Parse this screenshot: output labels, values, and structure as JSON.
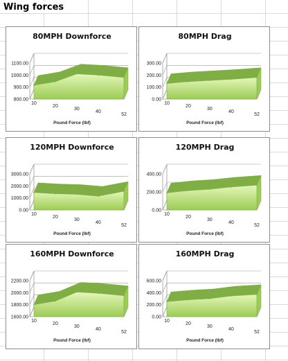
{
  "sheet": {
    "title": "Wing forces"
  },
  "colors": {
    "fill_light": "#e4f7b8",
    "fill_dark": "#9ccc55",
    "edge": "#7fae45",
    "grid": "#9a9a9a"
  },
  "chart_data": [
    {
      "type": "area",
      "title": "80MPH Downforce",
      "xlabel": "Pound Force (lbf)",
      "ylabel": "",
      "x_ticks": [
        "10",
        "20",
        "30",
        "40",
        "52"
      ],
      "y_ticks": [
        "800.00",
        "900.00",
        "1000.00",
        "1100.00"
      ],
      "ylim": [
        800,
        1100
      ],
      "x": [
        10,
        20,
        30,
        40,
        52
      ],
      "series": [
        {
          "values": [
            915,
            945,
            1010,
            1000,
            980
          ]
        }
      ]
    },
    {
      "type": "area",
      "title": "80MPH Drag",
      "xlabel": "Pound Force (lbf)",
      "ylabel": "",
      "x_ticks": [
        "10",
        "20",
        "30",
        "40",
        "52"
      ],
      "y_ticks": [
        "0.00",
        "100.00",
        "200.00",
        "300.00"
      ],
      "ylim": [
        0,
        300
      ],
      "x": [
        10,
        20,
        30,
        40,
        52
      ],
      "series": [
        {
          "values": [
            130,
            145,
            155,
            165,
            180
          ]
        }
      ]
    },
    {
      "type": "area",
      "title": "120MPH Downforce",
      "xlabel": "Pound Force (lbf)",
      "ylabel": "",
      "x_ticks": [
        "10",
        "20",
        "30",
        "40",
        "52"
      ],
      "y_ticks": [
        "0.00",
        "1000.00",
        "2000.00",
        "3000.00"
      ],
      "ylim": [
        0,
        3000
      ],
      "x": [
        10,
        20,
        30,
        40,
        52
      ],
      "series": [
        {
          "values": [
            1450,
            1350,
            1300,
            1150,
            1550
          ]
        }
      ]
    },
    {
      "type": "area",
      "title": "120MPH Drag",
      "xlabel": "Pound Force (lbf)",
      "ylabel": "",
      "x_ticks": [
        "10",
        "20",
        "30",
        "40",
        "52"
      ],
      "y_ticks": [
        "0.00",
        "200.00",
        "400.00"
      ],
      "ylim": [
        0,
        400
      ],
      "x": [
        10,
        20,
        30,
        40,
        52
      ],
      "series": [
        {
          "values": [
            190,
            215,
            230,
            255,
            275
          ]
        }
      ]
    },
    {
      "type": "area",
      "title": "160MPH Downforce",
      "xlabel": "Pound Force (lbf)",
      "ylabel": "",
      "x_ticks": [
        "10",
        "20",
        "30",
        "40",
        "52"
      ],
      "y_ticks": [
        "1600.00",
        "1800.00",
        "2000.00",
        "2200.00"
      ],
      "ylim": [
        1600,
        2200
      ],
      "x": [
        10,
        20,
        30,
        40,
        52
      ],
      "series": [
        {
          "values": [
            1800,
            1860,
            2010,
            1990,
            1950
          ]
        }
      ]
    },
    {
      "type": "area",
      "title": "160MPH Drag",
      "xlabel": "Pound Force (lbf)",
      "ylabel": "",
      "x_ticks": [
        "10",
        "20",
        "30",
        "40",
        "52"
      ],
      "y_ticks": [
        "0.00",
        "200.00",
        "400.00",
        "600.00"
      ],
      "ylim": [
        0,
        600
      ],
      "x": [
        10,
        20,
        30,
        40,
        52
      ],
      "series": [
        {
          "values": [
            250,
            280,
            300,
            345,
            370
          ]
        }
      ]
    }
  ]
}
